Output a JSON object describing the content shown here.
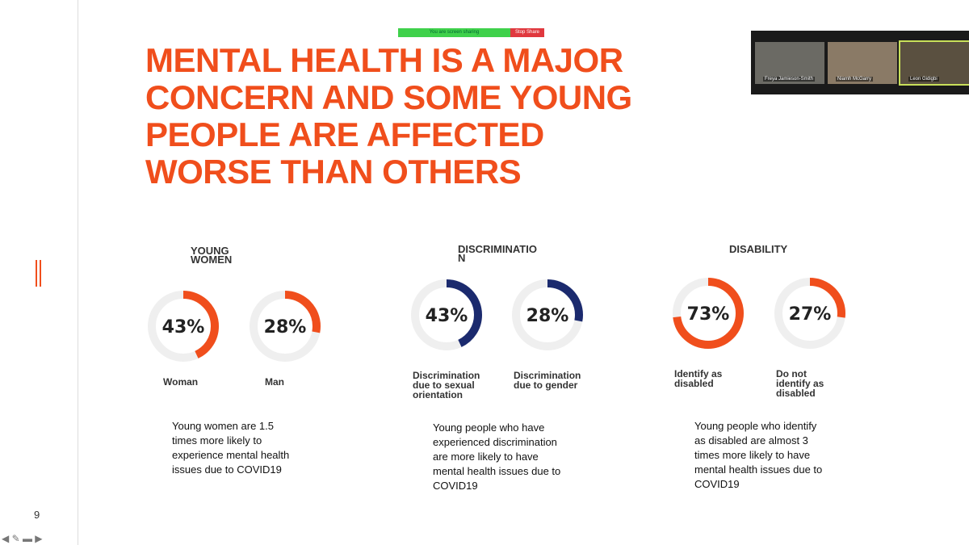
{
  "share_bar": {
    "status": "You are screen sharing",
    "stop": "Stop Share"
  },
  "participants": [
    "Freya Jamieson-Smith",
    "Niamh McGarry",
    "Leon Gidigbi"
  ],
  "slide": {
    "title_lines": [
      "MENTAL HEALTH IS A MAJOR",
      "CONCERN AND SOME YOUNG",
      "PEOPLE ARE AFFECTED",
      "WORSE THAN OTHERS"
    ],
    "page_number": "9",
    "sections": [
      {
        "heading": "YOUNG WOMEN",
        "color": "#f04e1c",
        "donuts": [
          {
            "value": 43,
            "label": "43%",
            "caption": "Woman"
          },
          {
            "value": 28,
            "label": "28%",
            "caption": "Man"
          }
        ],
        "note": "Young women are 1.5 times more likely to experience mental health issues due to COVID19"
      },
      {
        "heading": "DISCRIMINATION",
        "color": "#1b2a6e",
        "donuts": [
          {
            "value": 43,
            "label": "43%",
            "caption": "Discrimination due to sexual orientation"
          },
          {
            "value": 28,
            "label": "28%",
            "caption": "Discrimination due to gender"
          }
        ],
        "note": "Young people who have experienced discrimination are more likely to have mental health issues due to COVID19"
      },
      {
        "heading": "DISABILITY",
        "color": "#f04e1c",
        "donuts": [
          {
            "value": 73,
            "label": "73%",
            "caption": "Identify as disabled"
          },
          {
            "value": 27,
            "label": "27%",
            "caption": "Do not identify as disabled"
          }
        ],
        "note": "Young people who identify as disabled are almost 3 times more likely to have mental health issues due to COVID19"
      }
    ]
  }
}
